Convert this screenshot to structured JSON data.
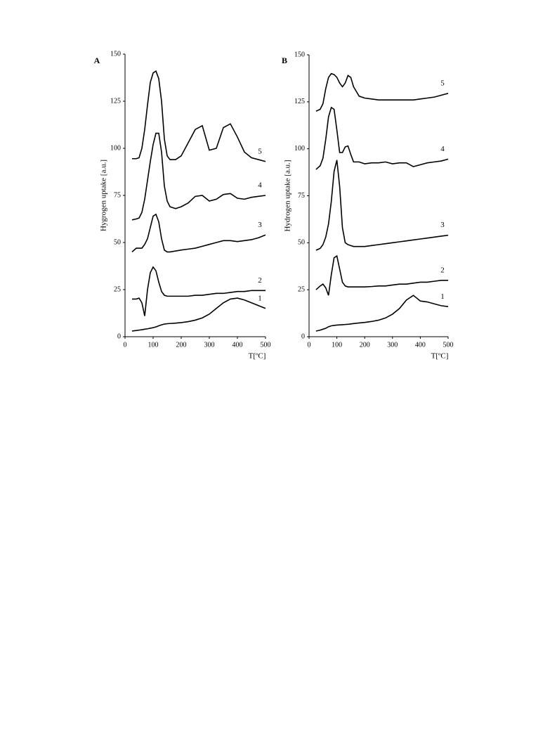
{
  "chart_data": [
    {
      "type": "line",
      "panel_label": "A",
      "ylabel": "Hygrogen uptake [a.u.]",
      "xlabel": "T[ºC]",
      "xlim": [
        0,
        500
      ],
      "xticks": [
        0,
        100,
        200,
        300,
        400,
        500
      ],
      "ylim": [
        0,
        150
      ],
      "yticks": [
        0,
        25,
        50,
        75,
        100,
        125,
        150
      ],
      "grid": false,
      "x": [
        25,
        40,
        50,
        60,
        70,
        80,
        90,
        100,
        110,
        120,
        130,
        140,
        150,
        160,
        180,
        200,
        225,
        250,
        275,
        300,
        325,
        350,
        375,
        400,
        425,
        450,
        475,
        500
      ],
      "series": [
        {
          "name": "1",
          "color": "#000000",
          "values": [
            3,
            3.3,
            3.5,
            3.7,
            4,
            4.2,
            4.5,
            4.8,
            5.2,
            5.8,
            6.3,
            6.7,
            6.9,
            7,
            7.2,
            7.5,
            8,
            8.8,
            10,
            12,
            15,
            18,
            20,
            20.5,
            19.5,
            18,
            16.5,
            15
          ]
        },
        {
          "name": "2",
          "color": "#000000",
          "values": [
            20,
            20,
            20.5,
            18,
            11,
            25,
            34,
            37,
            35,
            29,
            24,
            22,
            21.5,
            21.5,
            21.5,
            21.5,
            21.5,
            22,
            22,
            22.5,
            23,
            23,
            23.5,
            24,
            24,
            24.5,
            24.5,
            24.5
          ]
        },
        {
          "name": "3",
          "color": "#000000",
          "values": [
            45,
            47,
            47,
            47,
            49,
            52,
            58,
            64,
            65,
            61,
            52,
            46,
            45,
            45,
            45.5,
            46,
            46.5,
            47,
            48,
            49,
            50,
            51,
            51,
            50.5,
            51,
            51.5,
            52.5,
            54
          ]
        },
        {
          "name": "4",
          "color": "#000000",
          "values": [
            62,
            62.5,
            63,
            66,
            73,
            83,
            93,
            102,
            108,
            108,
            98,
            80,
            72,
            69,
            68,
            69,
            71,
            74.5,
            75,
            72,
            73,
            75.5,
            76,
            73.5,
            73,
            74,
            74.5,
            75
          ]
        },
        {
          "name": "5",
          "color": "#000000",
          "values": [
            94.5,
            94.5,
            95,
            100,
            110,
            123,
            135,
            140,
            141,
            137,
            125,
            105,
            96,
            94,
            94,
            96,
            103,
            110,
            112,
            99,
            100,
            111,
            113,
            106,
            98,
            95,
            94,
            93
          ]
        }
      ]
    },
    {
      "type": "line",
      "panel_label": "B",
      "ylabel": "Hydrogen uptake [a.u.]",
      "xlabel": "T[ºC]",
      "xlim": [
        0,
        500
      ],
      "xticks": [
        0,
        100,
        200,
        300,
        400,
        500
      ],
      "ylim": [
        0,
        150
      ],
      "yticks": [
        0,
        25,
        50,
        75,
        100,
        125,
        150
      ],
      "grid": false,
      "x": [
        25,
        40,
        50,
        60,
        70,
        80,
        90,
        100,
        110,
        120,
        130,
        140,
        150,
        160,
        180,
        200,
        225,
        250,
        275,
        300,
        325,
        350,
        375,
        400,
        425,
        450,
        475,
        500
      ],
      "series": [
        {
          "name": "1",
          "color": "#000000",
          "values": [
            3,
            3.5,
            4,
            4.5,
            5.3,
            5.8,
            6,
            6.2,
            6.3,
            6.4,
            6.5,
            6.6,
            6.8,
            7,
            7.3,
            7.6,
            8.1,
            8.8,
            10,
            12,
            15,
            19.5,
            22,
            19,
            18.5,
            17.5,
            16.5,
            16
          ]
        },
        {
          "name": "2",
          "color": "#000000",
          "values": [
            25,
            27,
            28,
            26,
            22,
            33,
            42,
            43,
            36,
            29,
            27,
            26.5,
            26.5,
            26.5,
            26.5,
            26.5,
            26.7,
            27,
            27,
            27.5,
            28,
            28,
            28.5,
            29,
            29,
            29.5,
            30,
            30
          ]
        },
        {
          "name": "3",
          "color": "#000000",
          "values": [
            46,
            47,
            49,
            53,
            60,
            72,
            88,
            94,
            80,
            58,
            50,
            49,
            48.5,
            48,
            48,
            48,
            48.5,
            49,
            49.5,
            50,
            50.5,
            51,
            51.5,
            52,
            52.5,
            53,
            53.5,
            54
          ]
        },
        {
          "name": "4",
          "color": "#000000",
          "values": [
            89,
            91,
            95,
            105,
            117,
            122,
            121,
            110,
            98,
            98,
            101,
            101.5,
            97,
            93,
            93,
            92,
            92.5,
            92.5,
            93,
            92,
            92.5,
            92.5,
            90.5,
            91.5,
            92.5,
            93,
            93.5,
            94.5
          ]
        },
        {
          "name": "5",
          "color": "#000000",
          "values": [
            120,
            121,
            124,
            132,
            138,
            140,
            139.5,
            138,
            135,
            133,
            135,
            139,
            138,
            133,
            128,
            127,
            126.5,
            126,
            126,
            126,
            126,
            126,
            126,
            126.5,
            127,
            127.5,
            128.5,
            129.5
          ]
        }
      ]
    }
  ]
}
